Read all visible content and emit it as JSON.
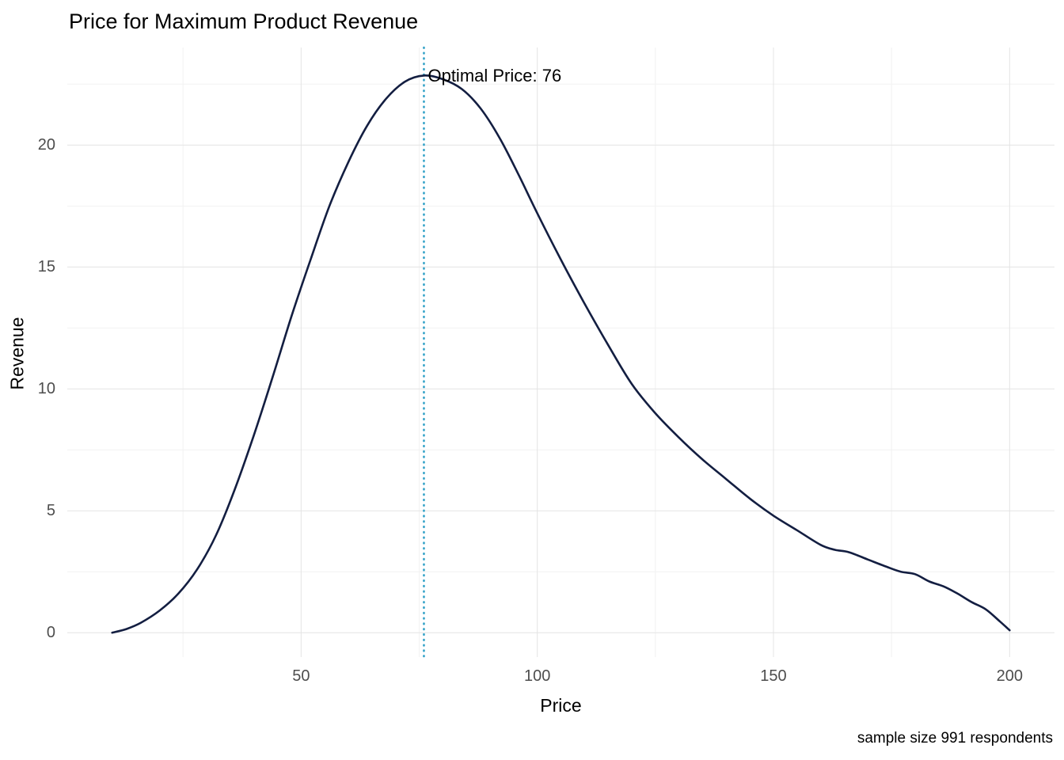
{
  "chart_data": {
    "type": "line",
    "title": "Price for Maximum Product Revenue",
    "xlabel": "Price",
    "ylabel": "Revenue",
    "caption": "sample size 991 respondents",
    "annotation": "Optimal Price: 76",
    "optimal_price": 76,
    "x_ticks": [
      50,
      100,
      150,
      200
    ],
    "y_ticks": [
      0,
      5,
      10,
      15,
      20
    ],
    "x_minor": [
      25,
      75,
      125,
      175
    ],
    "y_minor": [
      2.5,
      7.5,
      12.5,
      17.5,
      22.5
    ],
    "xlim": [
      0.5,
      209.5
    ],
    "ylim": [
      -1,
      24
    ],
    "grid": true,
    "legend": "none",
    "series": [
      {
        "name": "revenue",
        "x": [
          10,
          13,
          16,
          20,
          24,
          28,
          32,
          36,
          40,
          44,
          48,
          52,
          56,
          60,
          64,
          68,
          72,
          76,
          80,
          84,
          88,
          92,
          96,
          100,
          105,
          110,
          115,
          120,
          125,
          130,
          135,
          140,
          145,
          150,
          155,
          160,
          163,
          166,
          170,
          174,
          177,
          180,
          183,
          186,
          189,
          192,
          195,
          198,
          200
        ],
        "y": [
          0,
          0.15,
          0.4,
          0.9,
          1.6,
          2.6,
          4.0,
          5.9,
          8.1,
          10.5,
          13.0,
          15.3,
          17.5,
          19.3,
          20.8,
          21.9,
          22.6,
          22.85,
          22.7,
          22.3,
          21.5,
          20.3,
          18.8,
          17.2,
          15.3,
          13.5,
          11.8,
          10.2,
          9.0,
          8.0,
          7.1,
          6.3,
          5.5,
          4.8,
          4.2,
          3.6,
          3.4,
          3.3,
          3.0,
          2.7,
          2.5,
          2.4,
          2.1,
          1.9,
          1.6,
          1.25,
          0.95,
          0.45,
          0.1
        ]
      }
    ],
    "colors": {
      "line": "#131e41",
      "vline": "#31a1c7",
      "grid_major": "#e4e4e4",
      "grid_minor": "#f2f2f2",
      "tick_text": "#4d4d4d",
      "text": "#000000",
      "background": "#ffffff"
    }
  }
}
